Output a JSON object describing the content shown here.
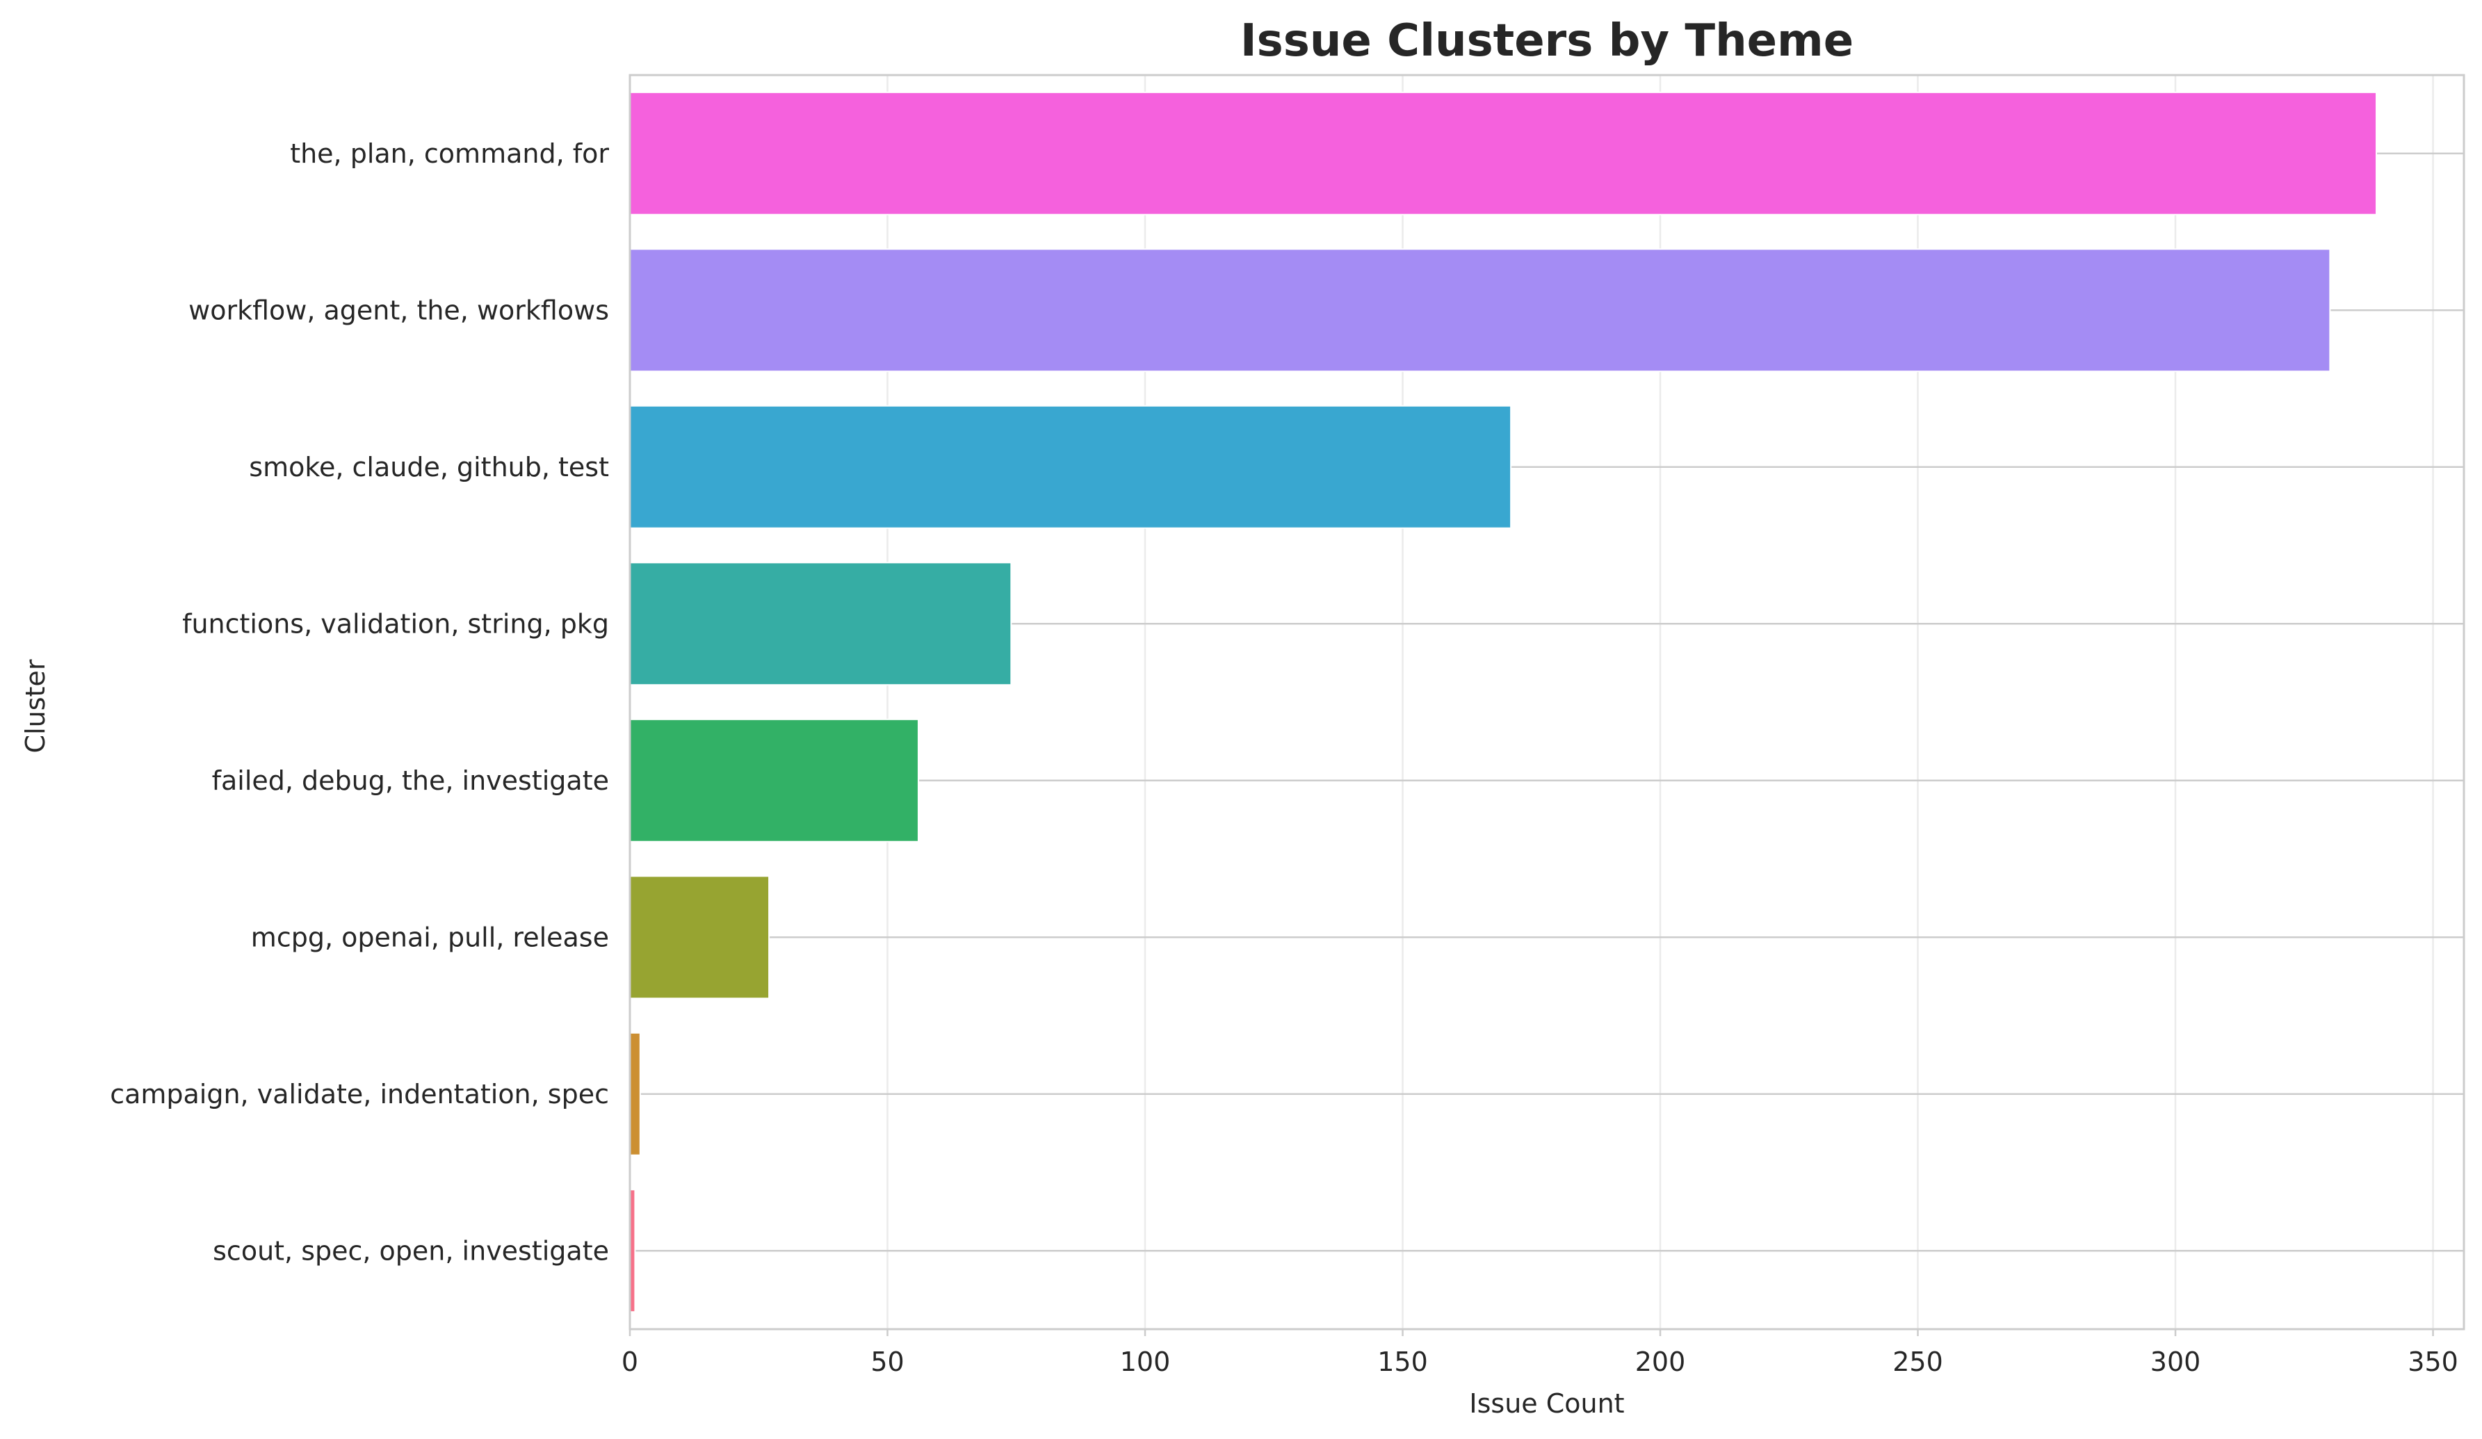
{
  "chart_data": {
    "type": "bar",
    "orientation": "horizontal",
    "title": "Issue Clusters by Theme",
    "xlabel": "Issue Count",
    "ylabel": "Cluster",
    "xlim": [
      0,
      356
    ],
    "xticks": [
      0,
      50,
      100,
      150,
      200,
      250,
      300,
      350
    ],
    "grid": true,
    "categories": [
      "the, plan, command, for",
      "workflow, agent, the, workflows",
      "smoke, claude, github, test",
      "functions, validation, string, pkg",
      "failed, debug, the, investigate",
      "mcpg, openai, pull, release",
      "campaign, validate, indentation, spec",
      "scout, spec, open, investigate"
    ],
    "values": [
      339,
      330,
      171,
      74,
      56,
      27,
      2,
      1
    ],
    "colors": [
      "#f561dd",
      "#a48cf4",
      "#39a7d0",
      "#36ada4",
      "#32b166",
      "#97a431",
      "#cc8f32",
      "#f77189"
    ]
  }
}
